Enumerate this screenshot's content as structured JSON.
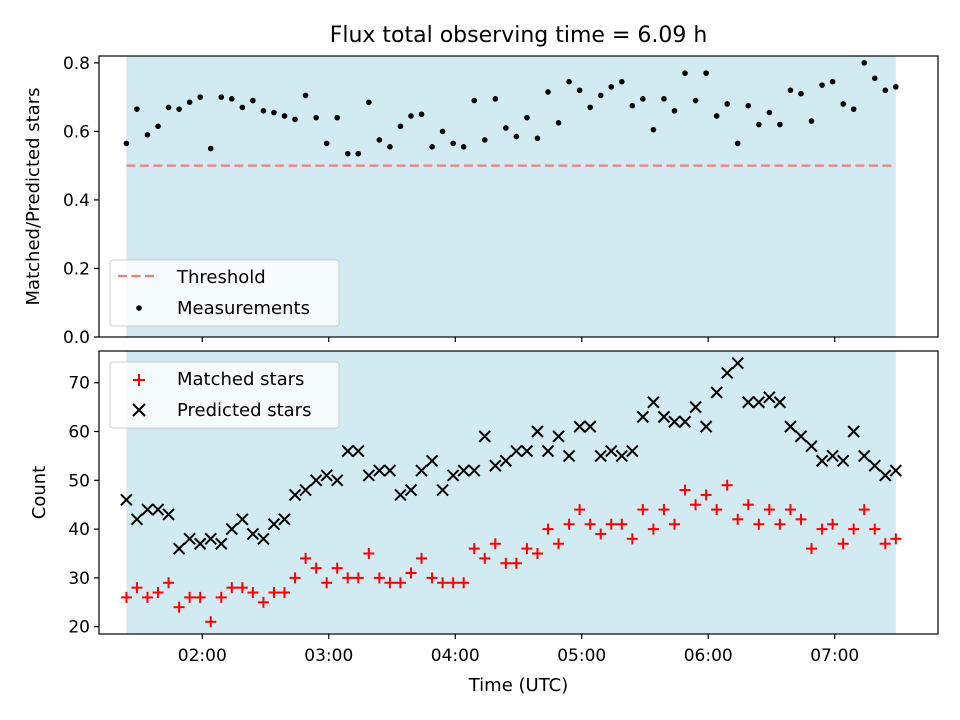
{
  "title": "Flux total observing time = 6.09 h",
  "colors": {
    "band": "#add8e6",
    "threshold": "#f08080",
    "measurement": "#000000",
    "matched": "#ff0000",
    "predicted": "#000000"
  },
  "chart_data": [
    {
      "type": "scatter",
      "panel": "top",
      "xlabel": "",
      "ylabel": "Matched/Predicted stars",
      "ylim": [
        0,
        0.82
      ],
      "yticks": [
        "0.0",
        "0.2",
        "0.4",
        "0.6",
        "0.8"
      ],
      "xlim": [
        "01:11",
        "07:49"
      ],
      "shaded_span": [
        "01:24",
        "07:29"
      ],
      "legend": {
        "position": "lower-left",
        "entries": [
          "Threshold",
          "Measurements"
        ]
      },
      "threshold": {
        "name": "Threshold",
        "value": 0.5
      },
      "series": [
        {
          "name": "Measurements",
          "marker": "dot",
          "x": [
            "01:24",
            "01:29",
            "01:34",
            "01:39",
            "01:44",
            "01:49",
            "01:54",
            "01:59",
            "02:04",
            "02:09",
            "02:14",
            "02:19",
            "02:24",
            "02:29",
            "02:34",
            "02:39",
            "02:44",
            "02:49",
            "02:54",
            "02:59",
            "03:04",
            "03:09",
            "03:14",
            "03:19",
            "03:24",
            "03:29",
            "03:34",
            "03:39",
            "03:44",
            "03:49",
            "03:54",
            "03:59",
            "04:04",
            "04:09",
            "04:14",
            "04:19",
            "04:24",
            "04:29",
            "04:34",
            "04:39",
            "04:44",
            "04:49",
            "04:54",
            "04:59",
            "05:04",
            "05:09",
            "05:14",
            "05:19",
            "05:24",
            "05:29",
            "05:34",
            "05:39",
            "05:44",
            "05:49",
            "05:54",
            "05:59",
            "06:04",
            "06:09",
            "06:14",
            "06:19",
            "06:24",
            "06:29",
            "06:34",
            "06:39",
            "06:44",
            "06:49",
            "06:54",
            "06:59",
            "07:04",
            "07:09",
            "07:14",
            "07:19",
            "07:24",
            "07:29"
          ],
          "y": [
            0.565,
            0.665,
            0.59,
            0.615,
            0.67,
            0.665,
            0.685,
            0.7,
            0.55,
            0.7,
            0.695,
            0.67,
            0.69,
            0.66,
            0.655,
            0.645,
            0.635,
            0.705,
            0.64,
            0.565,
            0.64,
            0.535,
            0.535,
            0.685,
            0.575,
            0.555,
            0.615,
            0.645,
            0.65,
            0.555,
            0.6,
            0.565,
            0.555,
            0.69,
            0.575,
            0.695,
            0.61,
            0.585,
            0.64,
            0.58,
            0.715,
            0.625,
            0.745,
            0.72,
            0.67,
            0.705,
            0.73,
            0.745,
            0.675,
            0.695,
            0.605,
            0.695,
            0.66,
            0.77,
            0.69,
            0.77,
            0.645,
            0.68,
            0.565,
            0.675,
            0.62,
            0.655,
            0.62,
            0.72,
            0.71,
            0.63,
            0.735,
            0.745,
            0.68,
            0.665,
            0.8,
            0.755,
            0.72,
            0.73
          ]
        }
      ]
    },
    {
      "type": "scatter",
      "panel": "bottom",
      "xlabel": "Time (UTC)",
      "ylabel": "Count",
      "ylim": [
        18.5,
        76.5
      ],
      "yticks": [
        "20",
        "30",
        "40",
        "50",
        "60",
        "70"
      ],
      "xlim": [
        "01:11",
        "07:49"
      ],
      "xticks": [
        "02:00",
        "03:00",
        "04:00",
        "05:00",
        "06:00",
        "07:00"
      ],
      "shaded_span": [
        "01:24",
        "07:29"
      ],
      "legend": {
        "position": "top-left",
        "entries": [
          "Matched stars",
          "Predicted stars"
        ]
      },
      "x": [
        "01:24",
        "01:29",
        "01:34",
        "01:39",
        "01:44",
        "01:49",
        "01:54",
        "01:59",
        "02:04",
        "02:09",
        "02:14",
        "02:19",
        "02:24",
        "02:29",
        "02:34",
        "02:39",
        "02:44",
        "02:49",
        "02:54",
        "02:59",
        "03:04",
        "03:09",
        "03:14",
        "03:19",
        "03:24",
        "03:29",
        "03:34",
        "03:39",
        "03:44",
        "03:49",
        "03:54",
        "03:59",
        "04:04",
        "04:09",
        "04:14",
        "04:19",
        "04:24",
        "04:29",
        "04:34",
        "04:39",
        "04:44",
        "04:49",
        "04:54",
        "04:59",
        "05:04",
        "05:09",
        "05:14",
        "05:19",
        "05:24",
        "05:29",
        "05:34",
        "05:39",
        "05:44",
        "05:49",
        "05:54",
        "05:59",
        "06:04",
        "06:09",
        "06:14",
        "06:19",
        "06:24",
        "06:29",
        "06:34",
        "06:39",
        "06:44",
        "06:49",
        "06:54",
        "06:59",
        "07:04",
        "07:09",
        "07:14",
        "07:19",
        "07:24",
        "07:29"
      ],
      "series": [
        {
          "name": "Matched stars",
          "marker": "plus",
          "values": [
            26,
            28,
            26,
            27,
            29,
            24,
            26,
            26,
            21,
            26,
            28,
            28,
            27,
            25,
            27,
            27,
            30,
            34,
            32,
            29,
            32,
            30,
            30,
            35,
            30,
            29,
            29,
            31,
            34,
            30,
            29,
            29,
            29,
            36,
            34,
            37,
            33,
            33,
            36,
            35,
            40,
            37,
            41,
            44,
            41,
            39,
            41,
            41,
            38,
            44,
            40,
            44,
            41,
            48,
            45,
            47,
            44,
            49,
            42,
            45,
            41,
            44,
            41,
            44,
            42,
            36,
            40,
            41,
            37,
            40,
            44,
            40,
            37,
            38
          ]
        },
        {
          "name": "Predicted stars",
          "marker": "x",
          "values": [
            46,
            42,
            44,
            44,
            43,
            36,
            38,
            37,
            38,
            37,
            40,
            42,
            39,
            38,
            41,
            42,
            47,
            48,
            50,
            51,
            50,
            56,
            56,
            51,
            52,
            52,
            47,
            48,
            52,
            54,
            48,
            51,
            52,
            52,
            59,
            53,
            54,
            56,
            56,
            60,
            56,
            59,
            55,
            61,
            61,
            55,
            56,
            55,
            56,
            63,
            66,
            63,
            62,
            62,
            65,
            61,
            68,
            72,
            74,
            66,
            66,
            67,
            66,
            61,
            59,
            57,
            54,
            55,
            54,
            60,
            55,
            53,
            51,
            52
          ]
        }
      ]
    }
  ]
}
